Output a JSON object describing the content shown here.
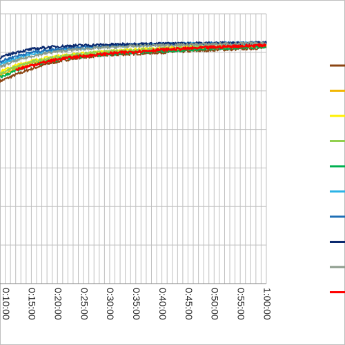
{
  "chart_data": {
    "type": "line",
    "title": "",
    "xlabel": "",
    "ylabel": "",
    "x_unit": "minutes",
    "x_tick_labels": [
      "0:10:00",
      "0:15:00",
      "0:20:00",
      "0:25:00",
      "0:30:00",
      "0:35:00",
      "0:40:00",
      "0:45:00",
      "0:50:00",
      "0:55:00",
      "1:00:00"
    ],
    "x_tick_values": [
      10,
      15,
      20,
      25,
      30,
      35,
      40,
      45,
      50,
      55,
      60
    ],
    "xlim": [
      9,
      60
    ],
    "ylim": [
      0,
      7
    ],
    "grid": true,
    "legend_position": "right",
    "series": [
      {
        "color": "#8B4513",
        "x": [
          9,
          12,
          15,
          18,
          21,
          24,
          27,
          30,
          33,
          36,
          39,
          42,
          45,
          48,
          51,
          54,
          57,
          60
        ],
        "y": [
          5.25,
          5.42,
          5.57,
          5.7,
          5.79,
          5.86,
          5.9,
          5.93,
          5.95,
          5.97,
          5.99,
          6.01,
          6.03,
          6.05,
          6.07,
          6.08,
          6.1,
          6.12
        ]
      },
      {
        "color": "#F2B705",
        "x": [
          9,
          12,
          15,
          18,
          21,
          24,
          27,
          30,
          33,
          36,
          39,
          42,
          45,
          48,
          51,
          54,
          57,
          60
        ],
        "y": [
          5.42,
          5.58,
          5.71,
          5.8,
          5.87,
          5.91,
          5.95,
          5.98,
          6.01,
          6.03,
          6.05,
          6.07,
          6.09,
          6.11,
          6.12,
          6.14,
          6.16,
          6.17
        ]
      },
      {
        "color": "#FFF000",
        "x": [
          9,
          12,
          15,
          18,
          21,
          24,
          27,
          30,
          33,
          36,
          39,
          42,
          45,
          48,
          51,
          54,
          57,
          60
        ],
        "y": [
          5.5,
          5.66,
          5.78,
          5.86,
          5.92,
          5.96,
          6.0,
          6.03,
          6.06,
          6.08,
          6.1,
          6.12,
          6.14,
          6.15,
          6.16,
          6.18,
          6.19,
          6.2
        ]
      },
      {
        "color": "#92D050",
        "x": [
          9,
          12,
          15,
          18,
          21,
          24,
          27,
          30,
          33,
          36,
          39,
          42,
          45,
          48,
          51,
          54,
          57,
          60
        ],
        "y": [
          5.45,
          5.62,
          5.75,
          5.84,
          5.9,
          5.95,
          5.99,
          6.02,
          6.05,
          6.07,
          6.09,
          6.11,
          6.13,
          6.15,
          6.16,
          6.18,
          6.19,
          6.2
        ]
      },
      {
        "color": "#00B050",
        "x": [
          9,
          12,
          15,
          18,
          21,
          24,
          27,
          30,
          33,
          36,
          39,
          42,
          45,
          48,
          51,
          54,
          57,
          60
        ],
        "y": [
          5.35,
          5.52,
          5.66,
          5.76,
          5.83,
          5.88,
          5.92,
          5.95,
          5.98,
          6.0,
          6.02,
          6.04,
          6.06,
          6.08,
          6.1,
          6.12,
          6.13,
          6.15
        ]
      },
      {
        "color": "#2BB3E6",
        "x": [
          9,
          12,
          15,
          18,
          21,
          24,
          27,
          30,
          33,
          36,
          39,
          42,
          45,
          48,
          51,
          54,
          57,
          60
        ],
        "y": [
          5.7,
          5.84,
          5.95,
          6.02,
          6.07,
          6.1,
          6.13,
          6.15,
          6.17,
          6.19,
          6.2,
          6.21,
          6.22,
          6.22,
          6.23,
          6.23,
          6.24,
          6.24
        ]
      },
      {
        "color": "#1F6FB5",
        "x": [
          9,
          12,
          15,
          18,
          21,
          24,
          27,
          30,
          33,
          36,
          39,
          42,
          45,
          48,
          51,
          54,
          57,
          60
        ],
        "y": [
          5.76,
          5.9,
          6.0,
          6.06,
          6.1,
          6.13,
          6.15,
          6.17,
          6.19,
          6.2,
          6.21,
          6.22,
          6.23,
          6.23,
          6.24,
          6.24,
          6.24,
          6.25
        ]
      },
      {
        "color": "#0B2A6F",
        "x": [
          9,
          12,
          15,
          18,
          21,
          24,
          27,
          30,
          33,
          36,
          39,
          42,
          45,
          48,
          51,
          54,
          57,
          60
        ],
        "y": [
          5.86,
          6.0,
          6.08,
          6.13,
          6.16,
          6.18,
          6.19,
          6.2,
          6.21,
          6.22,
          6.22,
          6.23,
          6.23,
          6.24,
          6.24,
          6.24,
          6.25,
          6.25
        ]
      },
      {
        "color": "#8C9C8C",
        "x": [
          9,
          12,
          15,
          18,
          21,
          24,
          27,
          30,
          33,
          36,
          39,
          42,
          45,
          48,
          51,
          54,
          57,
          60
        ],
        "y": [
          5.62,
          5.78,
          5.9,
          5.98,
          6.04,
          6.08,
          6.11,
          6.13,
          6.15,
          6.17,
          6.18,
          6.19,
          6.2,
          6.21,
          6.22,
          6.22,
          6.23,
          6.23
        ]
      },
      {
        "color": "#FF0000",
        "x": [
          12,
          15,
          18,
          21,
          24,
          27,
          30,
          33,
          36,
          39,
          42,
          45,
          48,
          51,
          54,
          57,
          60
        ],
        "y": [
          5.55,
          5.66,
          5.76,
          5.84,
          5.89,
          5.93,
          5.97,
          6.0,
          6.03,
          6.06,
          6.08,
          6.1,
          6.12,
          6.14,
          6.16,
          6.17,
          6.19
        ]
      }
    ]
  }
}
